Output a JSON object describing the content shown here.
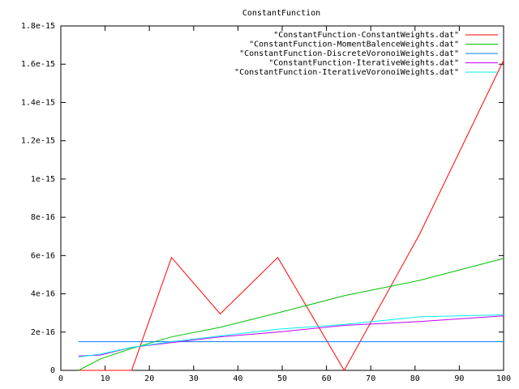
{
  "chart_data": {
    "type": "line",
    "title": "ConstantFunction",
    "x": [
      4,
      9,
      16,
      25,
      36,
      49,
      64,
      81,
      100
    ],
    "series": [
      {
        "name": "\"ConstantFunction-ConstantWeights.dat\"",
        "color": "#ff0000",
        "values": [
          0,
          0,
          0,
          5.9e-16,
          2.95e-16,
          5.9e-16,
          0,
          7.1e-16,
          1.62e-15
        ]
      },
      {
        "name": "\"ConstantFunction-MomentBalenceWeights.dat\"",
        "color": "#00c000",
        "values": [
          0,
          6e-17,
          1.15e-16,
          1.75e-16,
          2.25e-16,
          3e-16,
          3.9e-16,
          4.7e-16,
          5.85e-16
        ]
      },
      {
        "name": "\"ConstantFunction-DiscreteVoronoiWeights.dat\"",
        "color": "#0080ff",
        "values": [
          1.5e-16,
          1.5e-16,
          1.5e-16,
          1.5e-16,
          1.5e-16,
          1.5e-16,
          1.5e-16,
          1.5e-16,
          1.5e-16
        ]
      },
      {
        "name": "\"ConstantFunction-IterativeWeights.dat\"",
        "color": "#c000ff",
        "values": [
          7.5e-17,
          8e-17,
          1.2e-16,
          1.45e-16,
          1.75e-16,
          2e-16,
          2.35e-16,
          2.55e-16,
          2.85e-16
        ]
      },
      {
        "name": "\"ConstantFunction-IterativeVoronoiWeights.dat\"",
        "color": "#00eeee",
        "values": [
          7e-17,
          8.5e-17,
          1.2e-16,
          1.5e-16,
          1.8e-16,
          2.15e-16,
          2.4e-16,
          2.8e-16,
          2.9e-16
        ]
      }
    ],
    "xlim": [
      0,
      100
    ],
    "xticks": [
      0,
      10,
      20,
      30,
      40,
      50,
      60,
      70,
      80,
      90,
      100
    ],
    "ylim": [
      0,
      1.8e-15
    ],
    "yticks": [
      0,
      2e-16,
      4e-16,
      6e-16,
      8e-16,
      1e-15,
      1.2e-15,
      1.4e-15,
      1.6e-15,
      1.8e-15
    ],
    "legend": "top-right"
  }
}
